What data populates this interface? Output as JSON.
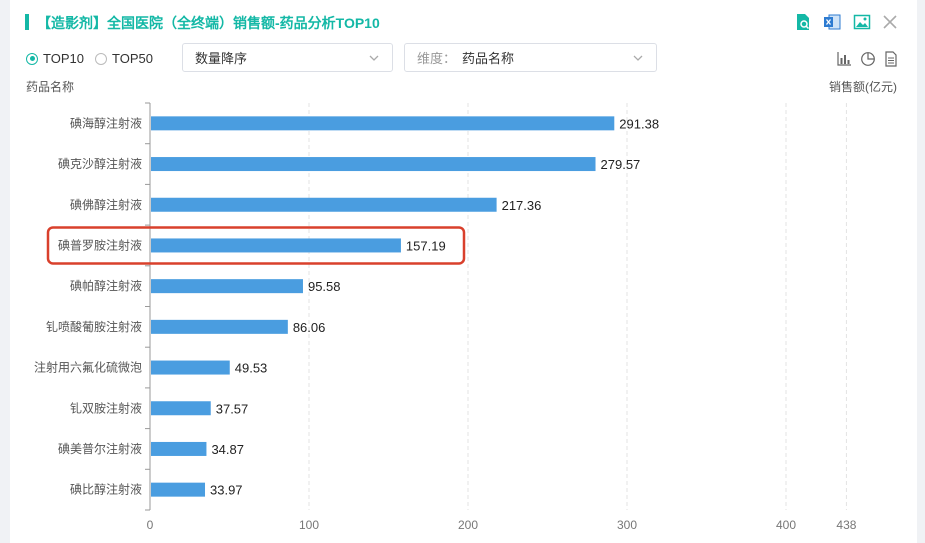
{
  "header": {
    "title": "【造影剂】全国医院（全终端）销售额-药品分析TOP10",
    "icons": [
      "search-report-icon",
      "excel-export-icon",
      "image-export-icon",
      "close-icon"
    ]
  },
  "controls": {
    "top10_label": "TOP10",
    "top50_label": "TOP50",
    "selected": "TOP10",
    "sort_value": "数量降序",
    "dimension_prefix": "维度：",
    "dimension_value": "药品名称",
    "view_icons": [
      "bar-chart-icon",
      "pie-chart-icon",
      "document-icon"
    ]
  },
  "chart_data": {
    "type": "bar",
    "orientation": "horizontal",
    "title": "",
    "ylabel": "药品名称",
    "xlabel": "销售额(亿元)",
    "categories": [
      "碘海醇注射液",
      "碘克沙醇注射液",
      "碘佛醇注射液",
      "碘普罗胺注射液",
      "碘帕醇注射液",
      "钆喷酸葡胺注射液",
      "注射用六氟化硫微泡",
      "钆双胺注射液",
      "碘美普尔注射液",
      "碘比醇注射液"
    ],
    "values": [
      291.38,
      279.57,
      217.36,
      157.19,
      95.58,
      86.06,
      49.53,
      37.57,
      34.87,
      33.97
    ],
    "value_labels": [
      "291.38",
      "279.57",
      "217.36",
      "157.19",
      "95.58",
      "86.06",
      "49.53",
      "37.57",
      "34.87",
      "33.97"
    ],
    "xlim": [
      0,
      438
    ],
    "xticks": [
      0,
      100,
      200,
      300,
      400,
      438
    ],
    "grid": true,
    "bar_color": "#4a9de0",
    "highlight_index": 3,
    "highlight_color": "#d9402c"
  }
}
